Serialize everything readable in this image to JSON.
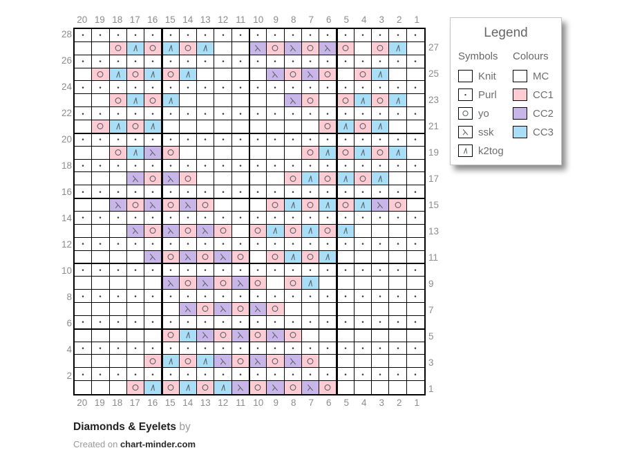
{
  "legend": {
    "title": "Legend",
    "symbols_header": "Symbols",
    "colours_header": "Colours",
    "symbols": [
      {
        "key": "knit",
        "label": "Knit"
      },
      {
        "key": "purl",
        "label": "Purl"
      },
      {
        "key": "yo",
        "label": "yo"
      },
      {
        "key": "ssk",
        "label": "ssk"
      },
      {
        "key": "k2tog",
        "label": "k2tog"
      }
    ],
    "colours": [
      {
        "key": "MC",
        "label": "MC",
        "hex": "#ffffff"
      },
      {
        "key": "CC1",
        "label": "CC1",
        "hex": "#ffccd4"
      },
      {
        "key": "CC2",
        "label": "CC2",
        "hex": "#c9b6e8"
      },
      {
        "key": "CC3",
        "label": "CC3",
        "hex": "#a8def6"
      }
    ]
  },
  "grid": {
    "columns": [
      20,
      19,
      18,
      17,
      16,
      15,
      14,
      13,
      12,
      11,
      10,
      9,
      8,
      7,
      6,
      5,
      4,
      3,
      2,
      1
    ],
    "rows_left": [
      28,
      26,
      24,
      22,
      20,
      18,
      16,
      14,
      12,
      10,
      8,
      6,
      4,
      2
    ],
    "rows_right": [
      27,
      25,
      23,
      21,
      19,
      17,
      15,
      13,
      11,
      9,
      7,
      5,
      3,
      1
    ],
    "cell_types": {
      "k": {
        "symbol": "knit",
        "colour": "MC"
      },
      "p": {
        "symbol": "purl",
        "colour": "MC"
      },
      "o": {
        "symbol": "yo",
        "colour": "CC1"
      },
      "s": {
        "symbol": "ssk",
        "colour": "CC2"
      },
      "t": {
        "symbol": "k2tog",
        "colour": "CC3"
      }
    },
    "cells": [
      "pppppppppppppppppppp",
      "kkotototkksososokotk",
      "pppppppppppppppppppp",
      "kotototkkkksosokotkk",
      "pppppppppppppppppppp",
      "kkototkkkkkksokototk",
      "pppppppppppppppppppp",
      "kototkkkkkkkkkototkk",
      "pppppppppppppppppppp",
      "kkotsokkkkkkkotototk",
      "pppppppppppppppppppp",
      "kkksosokkkkkotototkk",
      "pppppppppppppppppppp",
      "kksososokkkotototsok",
      "pppppppppppppppppppp",
      "kkksososokotototkkkk",
      "pppppppppppppppppppp",
      "kkkksososokototkkkkk",
      "pppppppppppppppppppp",
      "kkkkksososokotkkkkkk",
      "pppppppppppppppppppp",
      "kkkkkksososokkkkkkkk",
      "pppppppppppppppppppp",
      "kkkkkotsososokkkkkkk",
      "pppppppppppppppppppp",
      "kkkkototsososokkkkkk",
      "pppppppppppppppppppp",
      "kkkotototsososokkkkk"
    ]
  },
  "footer": {
    "title": "Diamonds & Eyelets",
    "by": "by",
    "created_prefix": "Created on",
    "site": "chart-minder.com"
  }
}
